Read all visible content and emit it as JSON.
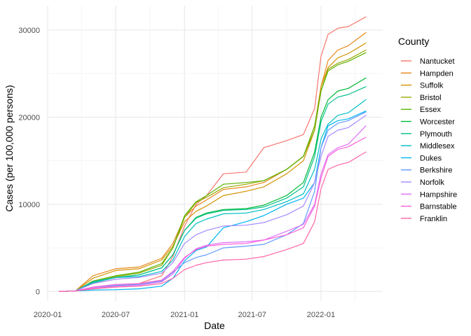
{
  "chart_data": {
    "type": "line",
    "xlabel": "Date",
    "ylabel": "Cases (per 100,000 persons)",
    "x_ticks": [
      "2020-01",
      "2020-07",
      "2021-01",
      "2021-07",
      "2022-01"
    ],
    "y_ticks": [
      0,
      10000,
      20000,
      30000
    ],
    "xlim": [
      "2020-01-01",
      "2022-06-15"
    ],
    "ylim": [
      -1100,
      32800
    ],
    "grid": true,
    "legend": {
      "title": "County",
      "placement": "right"
    },
    "dates": [
      "2020-02-01",
      "2020-03-15",
      "2020-05-01",
      "2020-07-01",
      "2020-09-01",
      "2020-11-01",
      "2020-12-01",
      "2021-01-01",
      "2021-02-01",
      "2021-03-01",
      "2021-04-15",
      "2021-06-15",
      "2021-08-01",
      "2021-10-01",
      "2021-11-15",
      "2021-12-15",
      "2022-01-01",
      "2022-01-20",
      "2022-02-15",
      "2022-03-15",
      "2022-05-01"
    ],
    "series": [
      {
        "name": "Nantucket",
        "color": "#F8766D",
        "values": [
          0,
          50,
          300,
          600,
          900,
          1800,
          4000,
          7500,
          10000,
          11000,
          13500,
          13700,
          16500,
          17300,
          18000,
          21000,
          27000,
          29500,
          30200,
          30400,
          31500
        ]
      },
      {
        "name": "Hampden",
        "color": "#E7861B",
        "values": [
          0,
          50,
          1800,
          2600,
          2800,
          3800,
          5500,
          8500,
          9800,
          10500,
          11700,
          12000,
          12500,
          14000,
          15500,
          19000,
          23500,
          26500,
          27700,
          28200,
          29700
        ]
      },
      {
        "name": "Suffolk",
        "color": "#D39200",
        "values": [
          0,
          50,
          1500,
          2400,
          2600,
          3600,
          5200,
          8000,
          9200,
          9800,
          11000,
          11500,
          12000,
          13500,
          15000,
          18500,
          23500,
          25700,
          26800,
          27300,
          28500
        ]
      },
      {
        "name": "Bristol",
        "color": "#95A900",
        "values": [
          0,
          50,
          1100,
          1700,
          2100,
          3000,
          5000,
          8500,
          10200,
          10800,
          11900,
          12300,
          12700,
          14000,
          15500,
          18500,
          23000,
          25500,
          26200,
          26600,
          27700
        ]
      },
      {
        "name": "Essex",
        "color": "#5BB300",
        "values": [
          0,
          50,
          1200,
          1800,
          2200,
          3200,
          5000,
          8700,
          10300,
          11000,
          12300,
          12500,
          12700,
          14000,
          15500,
          19000,
          23000,
          25300,
          26000,
          26400,
          27400
        ]
      },
      {
        "name": "Worcester",
        "color": "#00BA38",
        "values": [
          0,
          50,
          1000,
          1600,
          1900,
          2700,
          4200,
          7000,
          8500,
          9000,
          9400,
          9500,
          9900,
          11000,
          12500,
          16000,
          20000,
          22000,
          23000,
          23300,
          24500
        ]
      },
      {
        "name": "Plymouth",
        "color": "#00C08B",
        "values": [
          0,
          50,
          1000,
          1600,
          1900,
          2700,
          4200,
          7000,
          8400,
          8900,
          9300,
          9400,
          9700,
          10700,
          12000,
          15500,
          19500,
          21500,
          22300,
          22600,
          23500
        ]
      },
      {
        "name": "Middlesex",
        "color": "#00BFC4",
        "values": [
          0,
          50,
          1100,
          1600,
          1700,
          2300,
          3600,
          6300,
          7800,
          8300,
          8900,
          9000,
          9400,
          10300,
          11200,
          14000,
          17500,
          19200,
          20200,
          20500,
          22000
        ]
      },
      {
        "name": "Dukes",
        "color": "#00B4F0",
        "values": [
          0,
          50,
          150,
          200,
          300,
          600,
          1500,
          3500,
          4700,
          5100,
          7300,
          8000,
          8700,
          10000,
          10700,
          12500,
          16500,
          19000,
          19600,
          19800,
          20700
        ]
      },
      {
        "name": "Berkshire",
        "color": "#619CFF",
        "values": [
          0,
          50,
          500,
          700,
          800,
          1200,
          2200,
          3300,
          3900,
          4200,
          5000,
          5200,
          5400,
          6500,
          7800,
          11500,
          16500,
          18500,
          19300,
          19600,
          20600
        ]
      },
      {
        "name": "Norfolk",
        "color": "#A58AFF",
        "values": [
          0,
          50,
          900,
          1400,
          1600,
          2100,
          3300,
          5500,
          6500,
          7000,
          7500,
          7600,
          7900,
          8800,
          9800,
          12500,
          15500,
          17800,
          18500,
          18800,
          20200
        ]
      },
      {
        "name": "Hampshire",
        "color": "#DF70F8",
        "values": [
          0,
          50,
          400,
          600,
          700,
          1100,
          2000,
          3800,
          4900,
          5300,
          5600,
          5700,
          5900,
          6900,
          7700,
          10000,
          13500,
          15700,
          16500,
          16900,
          19000
        ]
      },
      {
        "name": "Barnstable",
        "color": "#FB61D7",
        "values": [
          0,
          50,
          500,
          800,
          900,
          1300,
          2300,
          3900,
          4800,
          5200,
          5400,
          5500,
          5900,
          6500,
          7300,
          9800,
          13000,
          15500,
          16300,
          16600,
          17700
        ]
      },
      {
        "name": "Franklin",
        "color": "#FF66A8",
        "values": [
          0,
          50,
          300,
          500,
          600,
          900,
          1500,
          2500,
          3000,
          3300,
          3600,
          3700,
          4000,
          4800,
          5500,
          8000,
          11800,
          14000,
          14500,
          14800,
          16000
        ]
      }
    ]
  }
}
